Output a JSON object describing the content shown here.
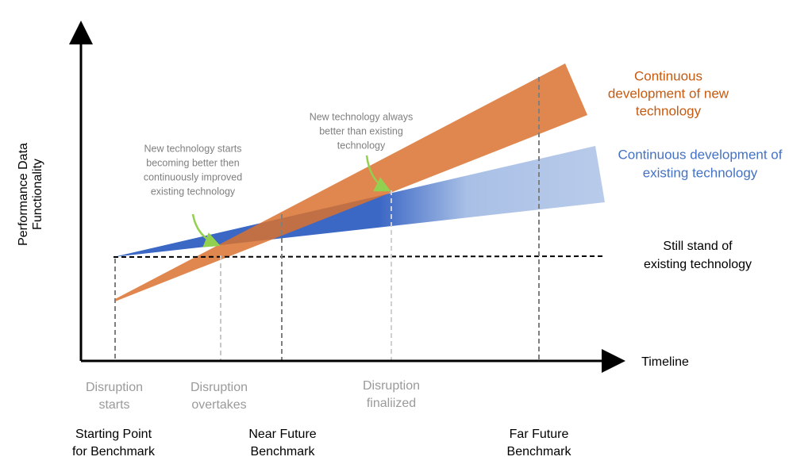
{
  "axes": {
    "y_label": [
      "Performance Data",
      "Functionality"
    ],
    "x_label": "Timeline"
  },
  "series_labels": {
    "new_technology": [
      "Continuous",
      "development of new",
      "technology"
    ],
    "existing_technology": [
      "Continuous development of",
      "existing technology"
    ],
    "still_stand": [
      "Still stand of",
      "existing technology"
    ]
  },
  "annotations": [
    [
      "New technology starts",
      "becoming better then",
      "continuously improved",
      "existing technology"
    ],
    [
      "New technology always",
      "better than existing",
      "technology"
    ]
  ],
  "milestones": [
    [
      "Disruption",
      "starts"
    ],
    [
      "Disruption",
      "overtakes"
    ],
    [
      "Disruption",
      "finaliized"
    ]
  ],
  "benchmarks": [
    [
      "Starting Point",
      "for Benchmark"
    ],
    [
      "Near Future",
      "Benchmark"
    ],
    [
      "Far Future",
      "Benchmark"
    ]
  ]
}
